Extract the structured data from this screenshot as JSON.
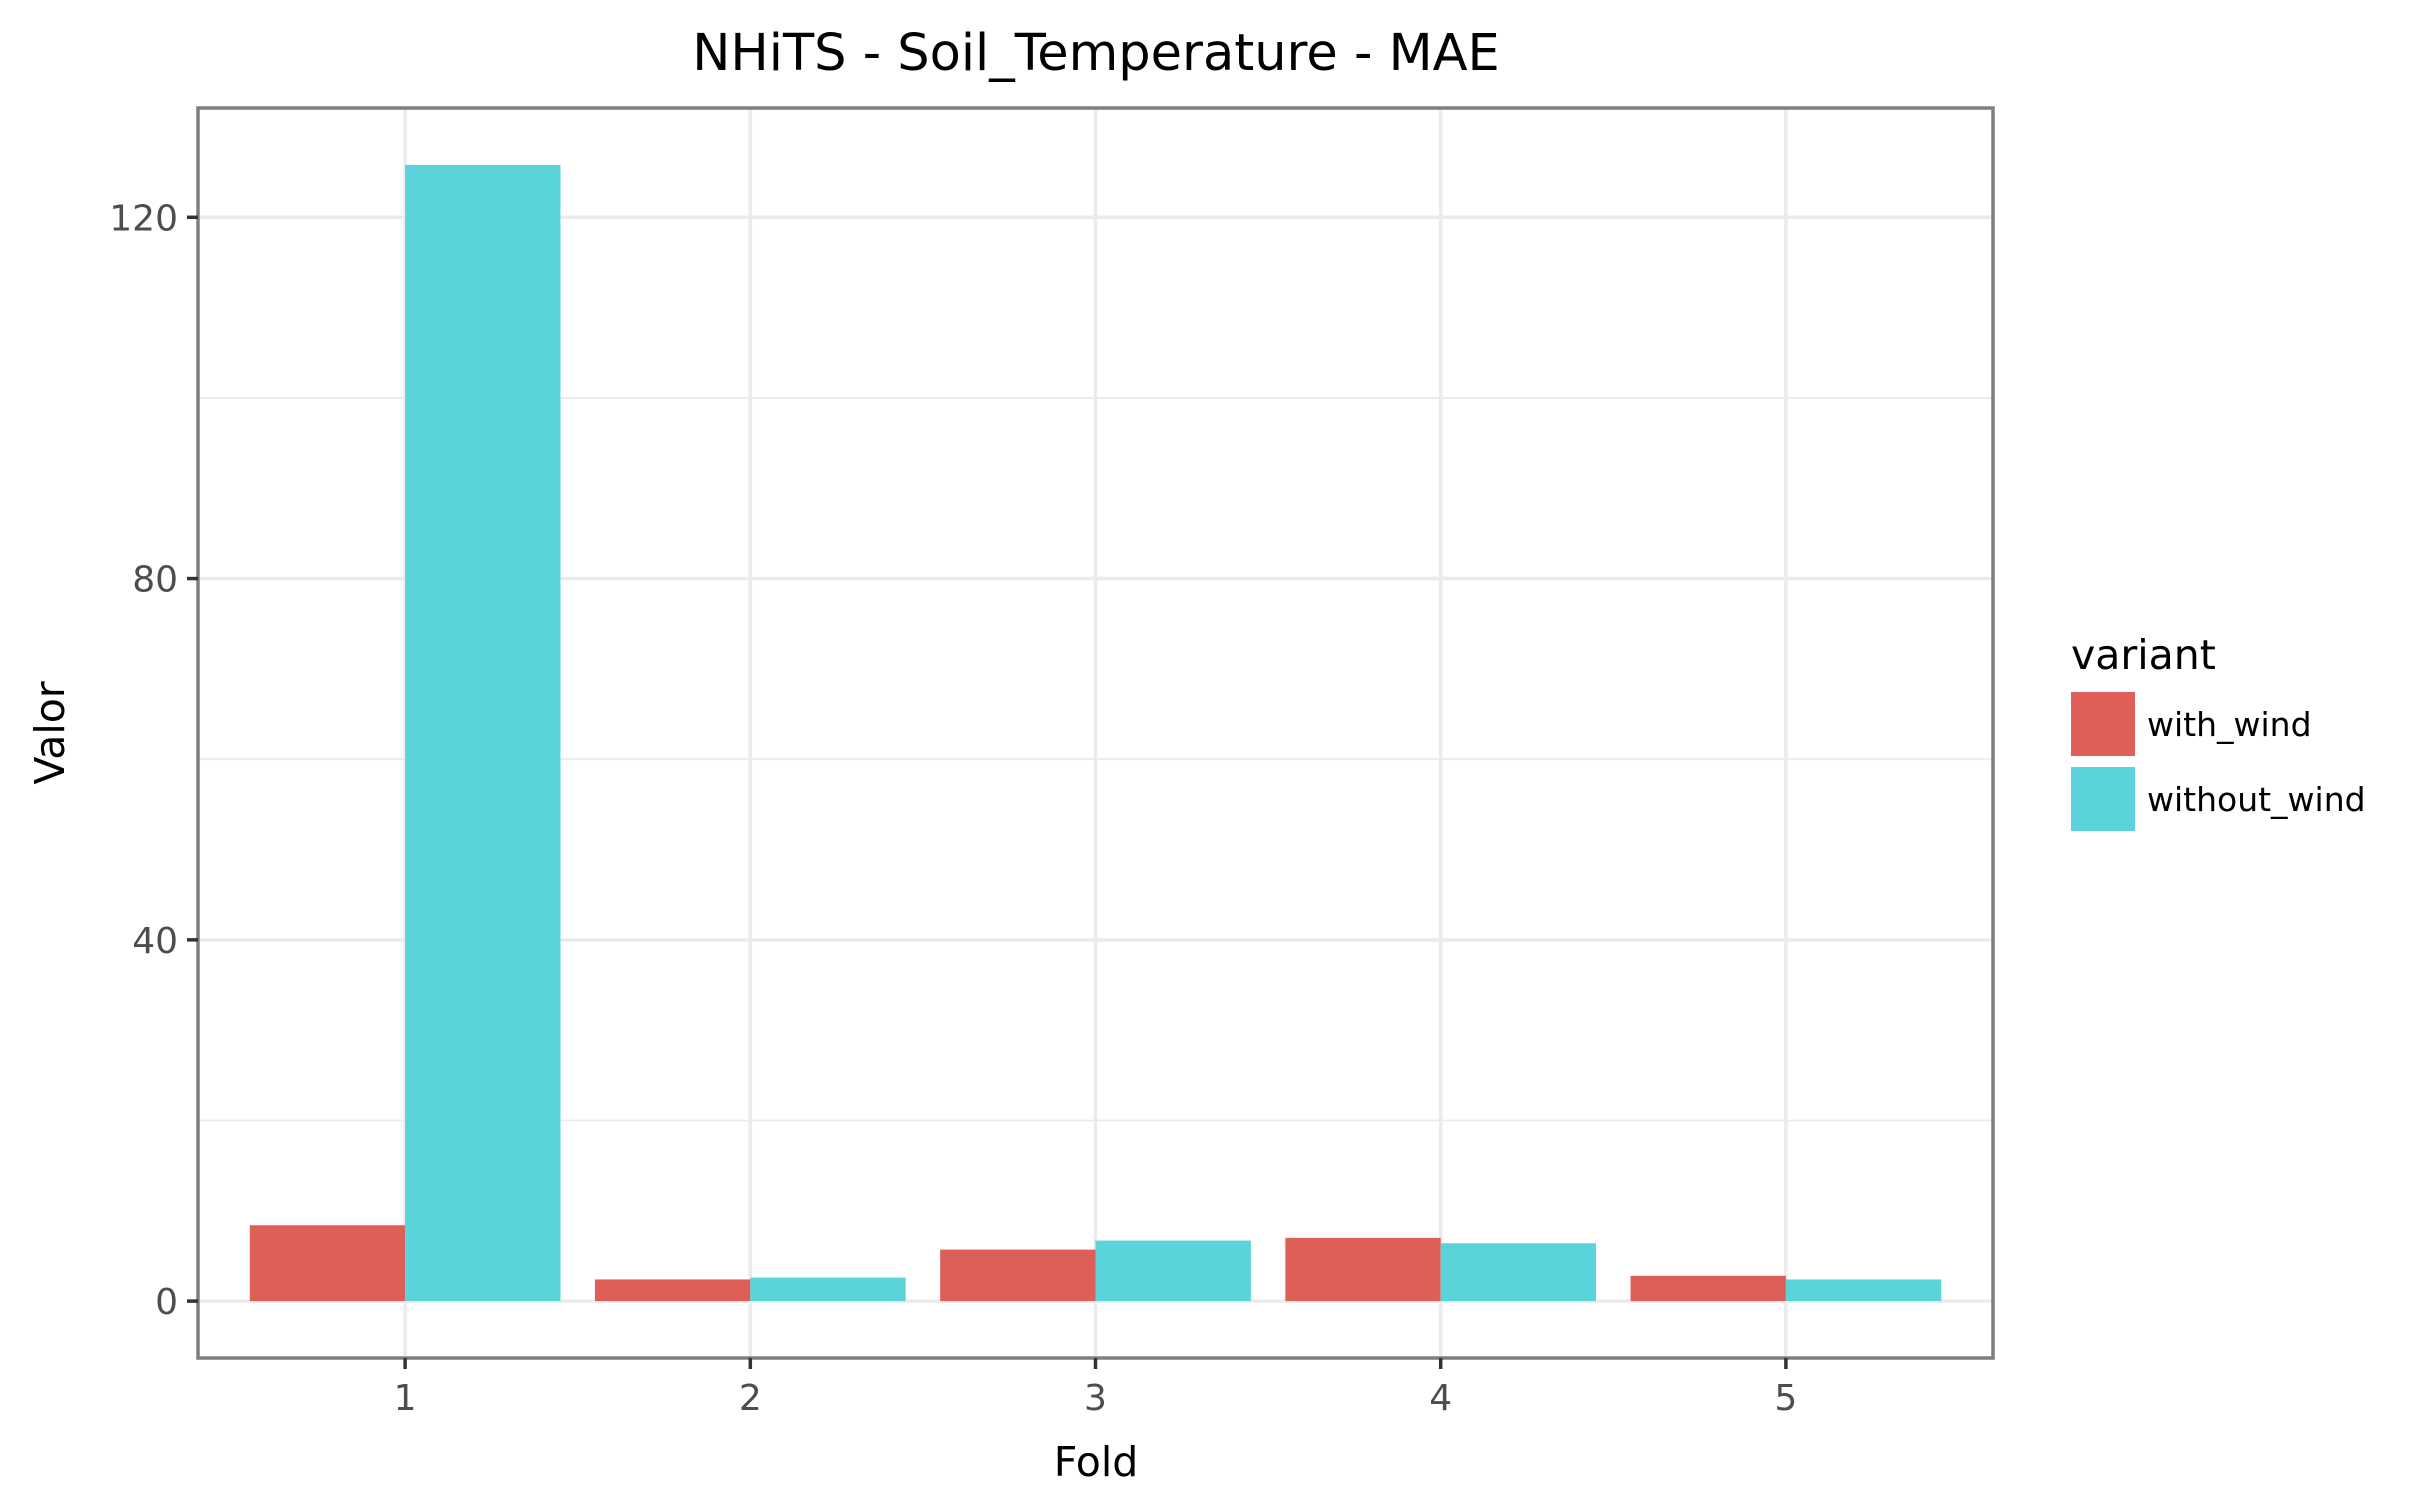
{
  "chart_data": {
    "type": "bar",
    "title": "NHiTS - Soil_Temperature - MAE",
    "xlabel": "Fold",
    "ylabel": "Valor",
    "categories": [
      "1",
      "2",
      "3",
      "4",
      "5"
    ],
    "series": [
      {
        "name": "with_wind",
        "color": "#de5f58",
        "values": [
          8.4,
          2.4,
          5.7,
          7.0,
          2.8
        ]
      },
      {
        "name": "without_wind",
        "color": "#5ad3db",
        "values": [
          125.8,
          2.6,
          6.7,
          6.4,
          2.4
        ]
      }
    ],
    "yticks": [
      0,
      40,
      80,
      120
    ],
    "ylim": [
      -6.3,
      132.1
    ],
    "grid": true,
    "legend": {
      "title": "variant",
      "position": "right"
    }
  }
}
